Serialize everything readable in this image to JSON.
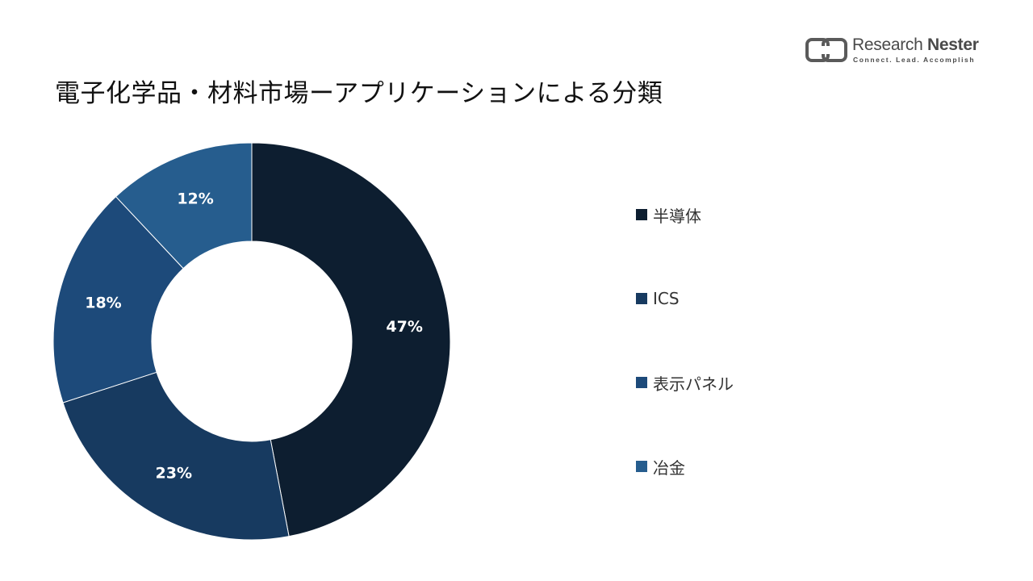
{
  "logo": {
    "name_part1": "Research",
    "name_part2": "Nester",
    "tagline": "Connect. Lead. Accomplish"
  },
  "title": "電子化学品・材料市場ーアプリケーションによる分類",
  "chart_data": {
    "type": "pie",
    "variant": "donut",
    "title": "電子化学品・材料市場ーアプリケーションによる分類",
    "categories": [
      "半導体",
      "ICS",
      "表示パネル",
      "冶金"
    ],
    "values": [
      47,
      23,
      18,
      12
    ],
    "value_labels": [
      "47%",
      "23%",
      "18%",
      "12%"
    ],
    "unit": "%",
    "colors": [
      "#0d1e30",
      "#173a60",
      "#1d4a7a",
      "#265d8e"
    ],
    "start": "12 o'clock",
    "direction": "clockwise",
    "legend_position": "right"
  }
}
